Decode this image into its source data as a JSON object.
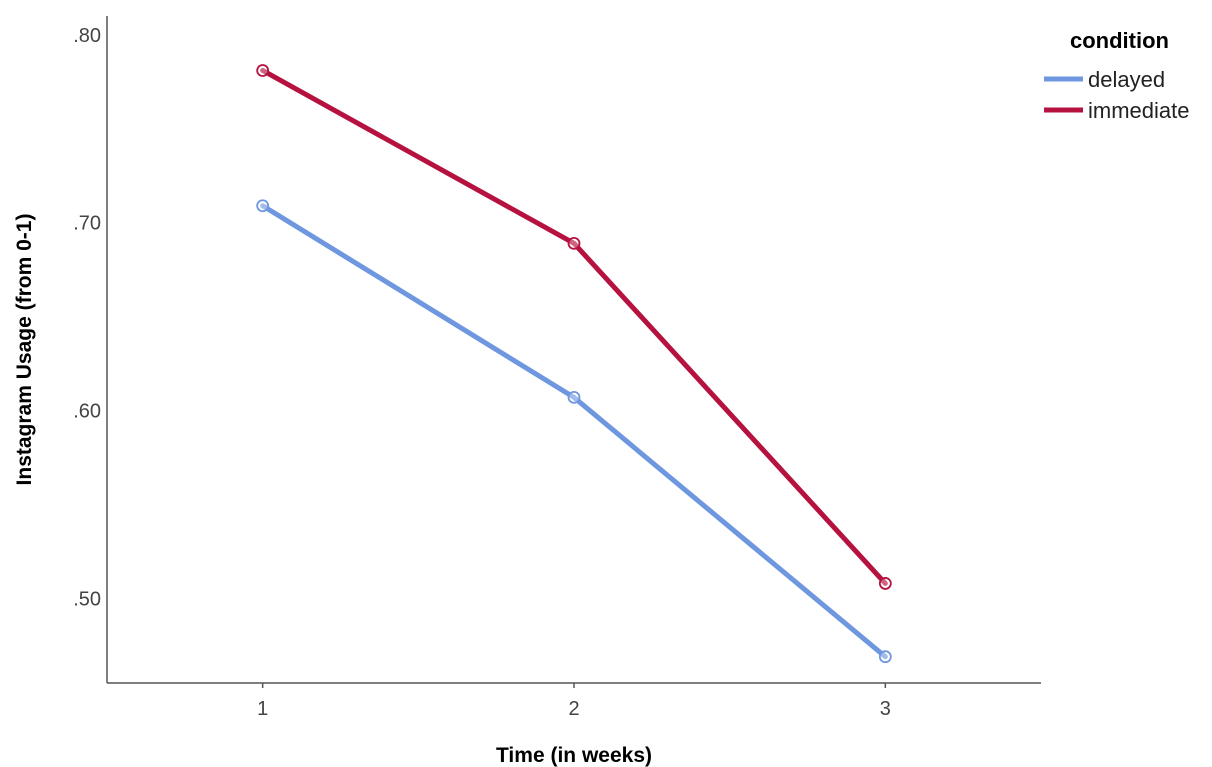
{
  "chart_data": {
    "type": "line",
    "xlabel": "Time (in weeks)",
    "ylabel": "Instagram Usage (from 0-1)",
    "categories": [
      "1",
      "2",
      "3"
    ],
    "x_range": [
      0.5,
      3.5
    ],
    "yticks": [
      0.5,
      0.6,
      0.7,
      0.8
    ],
    "ytick_labels": [
      ".50",
      ".60",
      ".70",
      ".80"
    ],
    "ylim": [
      0.455,
      0.81
    ],
    "grid": false,
    "legend": {
      "title": "condition",
      "placement": "top-right"
    },
    "series": [
      {
        "name": "delayed",
        "color": "#6f97e0",
        "values": [
          0.709,
          0.607,
          0.469
        ]
      },
      {
        "name": "immediate",
        "color": "#b5123f",
        "values": [
          0.781,
          0.689,
          0.508
        ]
      }
    ]
  }
}
